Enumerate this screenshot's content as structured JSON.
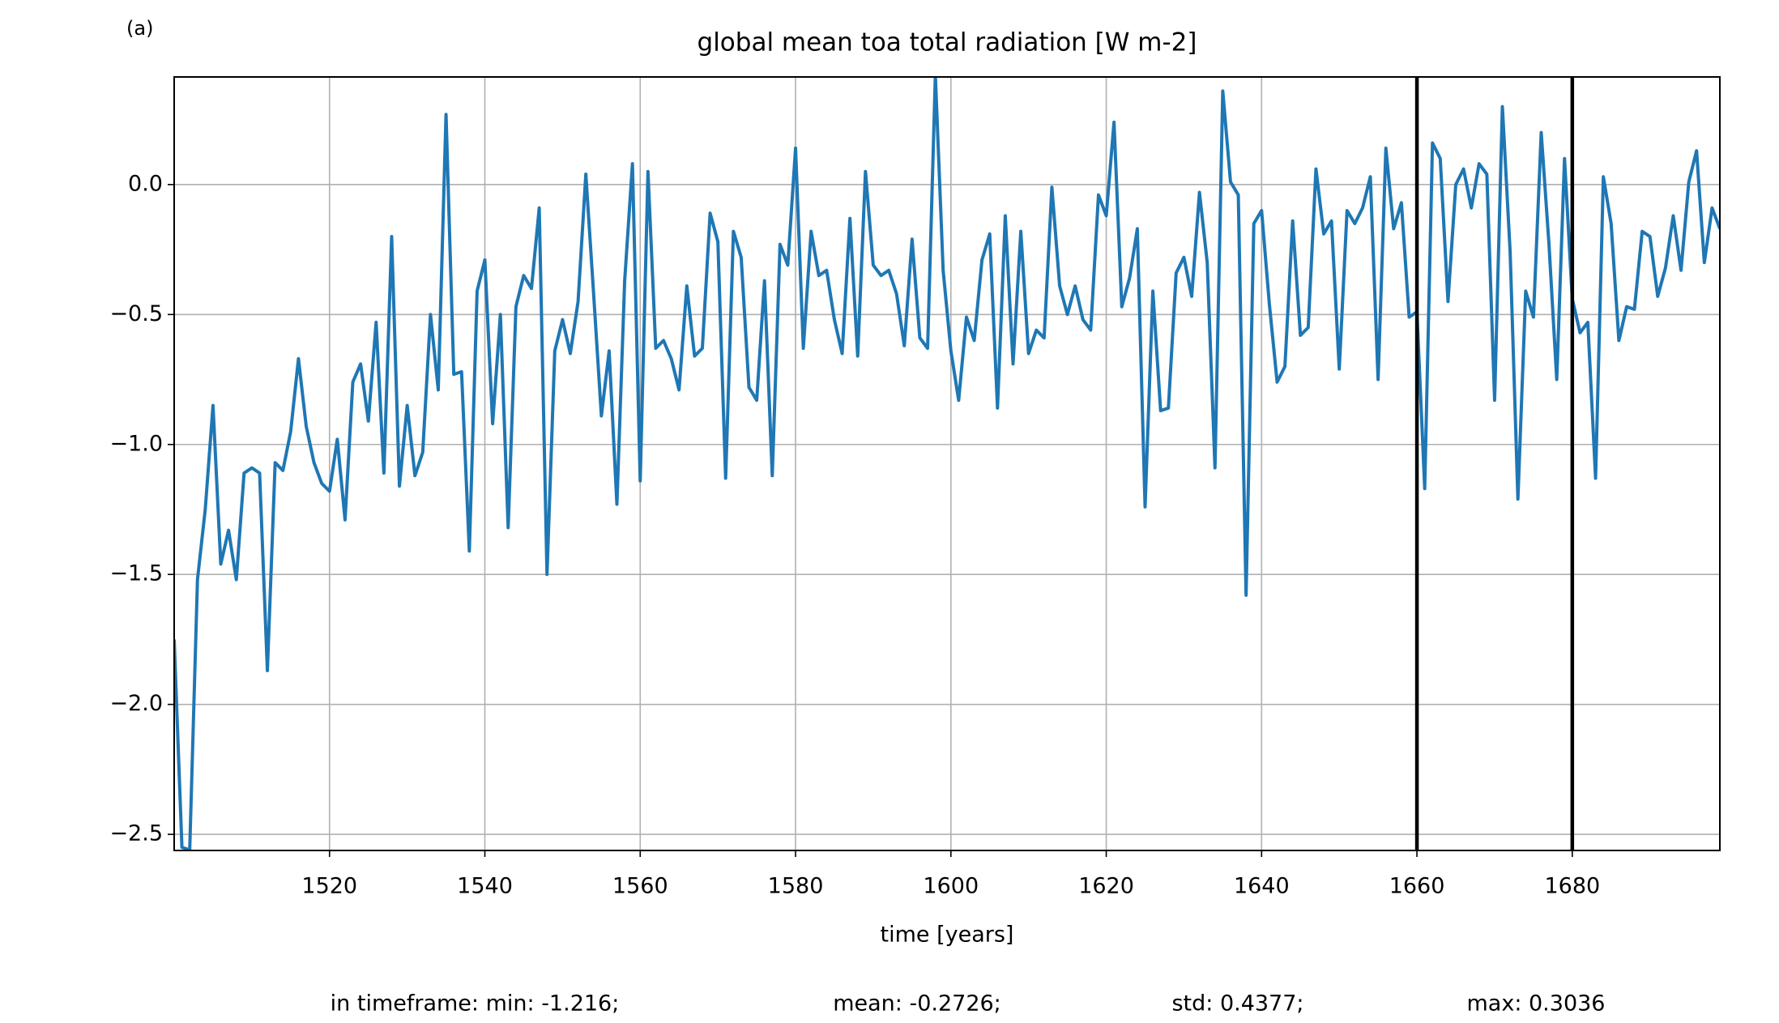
{
  "chart_data": {
    "type": "line",
    "title": "global mean toa total radiation [W m-2]",
    "xlabel": "time [years]",
    "panel_label": "(a)",
    "annotations": [
      "in timeframe: min: -1.216;",
      "mean: -0.2726;",
      "std: 0.4377;",
      "max: 0.3036"
    ],
    "x": [
      1500,
      1501,
      1502,
      1503,
      1504,
      1505,
      1506,
      1507,
      1508,
      1509,
      1510,
      1511,
      1512,
      1513,
      1514,
      1515,
      1516,
      1517,
      1518,
      1519,
      1520,
      1521,
      1522,
      1523,
      1524,
      1525,
      1526,
      1527,
      1528,
      1529,
      1530,
      1531,
      1532,
      1533,
      1534,
      1535,
      1536,
      1537,
      1538,
      1539,
      1540,
      1541,
      1542,
      1543,
      1544,
      1545,
      1546,
      1547,
      1548,
      1549,
      1550,
      1551,
      1552,
      1553,
      1554,
      1555,
      1556,
      1557,
      1558,
      1559,
      1560,
      1561,
      1562,
      1563,
      1564,
      1565,
      1566,
      1567,
      1568,
      1569,
      1570,
      1571,
      1572,
      1573,
      1574,
      1575,
      1576,
      1577,
      1578,
      1579,
      1580,
      1581,
      1582,
      1583,
      1584,
      1585,
      1586,
      1587,
      1588,
      1589,
      1590,
      1591,
      1592,
      1593,
      1594,
      1595,
      1596,
      1597,
      1598,
      1599,
      1600,
      1601,
      1602,
      1603,
      1604,
      1605,
      1606,
      1607,
      1608,
      1609,
      1610,
      1611,
      1612,
      1613,
      1614,
      1615,
      1616,
      1617,
      1618,
      1619,
      1620,
      1621,
      1622,
      1623,
      1624,
      1625,
      1626,
      1627,
      1628,
      1629,
      1630,
      1631,
      1632,
      1633,
      1634,
      1635,
      1636,
      1637,
      1638,
      1639,
      1640,
      1641,
      1642,
      1643,
      1644,
      1645,
      1646,
      1647,
      1648,
      1649,
      1650,
      1651,
      1652,
      1653,
      1654,
      1655,
      1656,
      1657,
      1658,
      1659,
      1660,
      1661,
      1662,
      1663,
      1664,
      1665,
      1666,
      1667,
      1668,
      1669,
      1670,
      1671,
      1672,
      1673,
      1674,
      1675,
      1676,
      1677,
      1678,
      1679,
      1680,
      1681,
      1682,
      1683,
      1684,
      1685,
      1686,
      1687,
      1688,
      1689,
      1690,
      1691,
      1692,
      1693,
      1694,
      1695,
      1696,
      1697,
      1698,
      1699
    ],
    "series": [
      {
        "color": "#1f77b4",
        "values": [
          -1.75,
          -2.55,
          -2.56,
          -1.52,
          -1.25,
          -0.85,
          -1.46,
          -1.33,
          -1.52,
          -1.11,
          -1.09,
          -1.11,
          -1.87,
          -1.07,
          -1.1,
          -0.95,
          -0.67,
          -0.93,
          -1.07,
          -1.15,
          -1.18,
          -0.98,
          -1.29,
          -0.76,
          -0.69,
          -0.91,
          -0.53,
          -1.11,
          -0.2,
          -1.16,
          -0.85,
          -1.12,
          -1.03,
          -0.5,
          -0.79,
          0.27,
          -0.73,
          -0.72,
          -1.41,
          -0.41,
          -0.29,
          -0.92,
          -0.5,
          -1.32,
          -0.47,
          -0.35,
          -0.4,
          -0.09,
          -1.5,
          -0.64,
          -0.52,
          -0.65,
          -0.45,
          0.04,
          -0.42,
          -0.89,
          -0.64,
          -1.23,
          -0.37,
          0.08,
          -1.14,
          0.05,
          -0.63,
          -0.6,
          -0.67,
          -0.79,
          -0.39,
          -0.66,
          -0.63,
          -0.11,
          -0.22,
          -1.13,
          -0.18,
          -0.28,
          -0.78,
          -0.83,
          -0.37,
          -1.12,
          -0.23,
          -0.31,
          0.14,
          -0.63,
          -0.18,
          -0.35,
          -0.33,
          -0.52,
          -0.65,
          -0.13,
          -0.66,
          0.05,
          -0.31,
          -0.35,
          -0.33,
          -0.42,
          -0.62,
          -0.21,
          -0.59,
          -0.63,
          0.42,
          -0.33,
          -0.64,
          -0.83,
          -0.51,
          -0.6,
          -0.29,
          -0.19,
          -0.86,
          -0.12,
          -0.69,
          -0.18,
          -0.65,
          -0.56,
          -0.59,
          -0.01,
          -0.39,
          -0.5,
          -0.39,
          -0.52,
          -0.56,
          -0.04,
          -0.12,
          0.24,
          -0.47,
          -0.36,
          -0.17,
          -1.24,
          -0.41,
          -0.87,
          -0.86,
          -0.34,
          -0.28,
          -0.43,
          -0.03,
          -0.3,
          -1.09,
          0.36,
          0.01,
          -0.04,
          -1.58,
          -0.15,
          -0.1,
          -0.46,
          -0.76,
          -0.7,
          -0.14,
          -0.58,
          -0.55,
          0.06,
          -0.19,
          -0.14,
          -0.71,
          -0.1,
          -0.15,
          -0.09,
          0.03,
          -0.75,
          0.14,
          -0.17,
          -0.07,
          -0.51,
          -0.49,
          -1.17,
          0.16,
          0.1,
          -0.45,
          0.0,
          0.06,
          -0.09,
          0.08,
          0.04,
          -0.83,
          0.3,
          -0.26,
          -1.21,
          -0.41,
          -0.51,
          0.2,
          -0.23,
          -0.75,
          0.1,
          -0.44,
          -0.57,
          -0.53,
          -1.13,
          0.03,
          -0.15,
          -0.6,
          -0.47,
          -0.48,
          -0.18,
          -0.2,
          -0.43,
          -0.32,
          -0.12,
          -0.33,
          0.01,
          0.13,
          -0.3,
          -0.09,
          -0.17
        ]
      }
    ],
    "vlines": [
      1660,
      1680
    ],
    "vline_color": "#000000",
    "xlim": [
      1500,
      1699
    ],
    "xticks": [
      1520,
      1540,
      1560,
      1580,
      1600,
      1620,
      1640,
      1660,
      1680
    ],
    "ylim": [
      -2.562,
      0.414
    ],
    "yticks": [
      {
        "value": -2.5,
        "label": "−2.5"
      },
      {
        "value": -2.0,
        "label": "−2.0"
      },
      {
        "value": -1.5,
        "label": "−1.5"
      },
      {
        "value": -1.0,
        "label": "−1.0"
      },
      {
        "value": -0.5,
        "label": "−0.5"
      },
      {
        "value": 0,
        "label": "0.0"
      }
    ],
    "grid": true
  }
}
